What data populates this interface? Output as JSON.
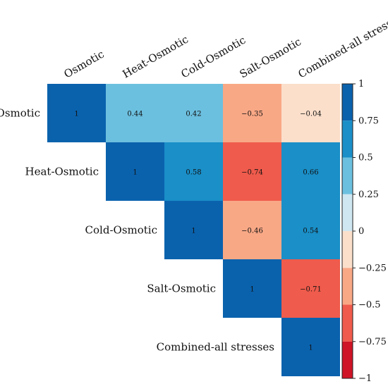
{
  "chart_data": {
    "type": "heatmap",
    "title": "",
    "variables": [
      "Osmotic",
      "Heat-Osmotic",
      "Cold-Osmotic",
      "Salt-Osmotic",
      "Combined-all stresses"
    ],
    "matrix": [
      [
        1,
        0.44,
        0.42,
        -0.35,
        -0.04
      ],
      [
        null,
        1,
        0.58,
        -0.74,
        0.66
      ],
      [
        null,
        null,
        1,
        -0.46,
        0.54
      ],
      [
        null,
        null,
        null,
        1,
        -0.71
      ],
      [
        null,
        null,
        null,
        null,
        1
      ]
    ],
    "layout": "upper-triangle",
    "colorbar": {
      "range": [
        -1,
        1
      ],
      "ticks": [
        1,
        0.75,
        0.5,
        0.25,
        0,
        -0.25,
        -0.5,
        -0.75,
        -1
      ],
      "tick_labels": [
        "1",
        "0.75",
        "0.5",
        "0.25",
        "0",
        "−0.25",
        "−0.5",
        "−0.75",
        "−1"
      ],
      "bins": [
        {
          "min": 0.75,
          "max": 1.0,
          "color": "#0a62ad"
        },
        {
          "min": 0.5,
          "max": 0.75,
          "color": "#1a8fc8"
        },
        {
          "min": 0.25,
          "max": 0.5,
          "color": "#6cc0df"
        },
        {
          "min": 0.0,
          "max": 0.25,
          "color": "#cfe7f1"
        },
        {
          "min": -0.25,
          "max": 0.0,
          "color": "#fbdfcb"
        },
        {
          "min": -0.5,
          "max": -0.25,
          "color": "#f9a886"
        },
        {
          "min": -0.75,
          "max": -0.5,
          "color": "#ef5b4c"
        },
        {
          "min": -1.0,
          "max": -0.75,
          "color": "#ce1426"
        }
      ],
      "placement": "right"
    }
  }
}
